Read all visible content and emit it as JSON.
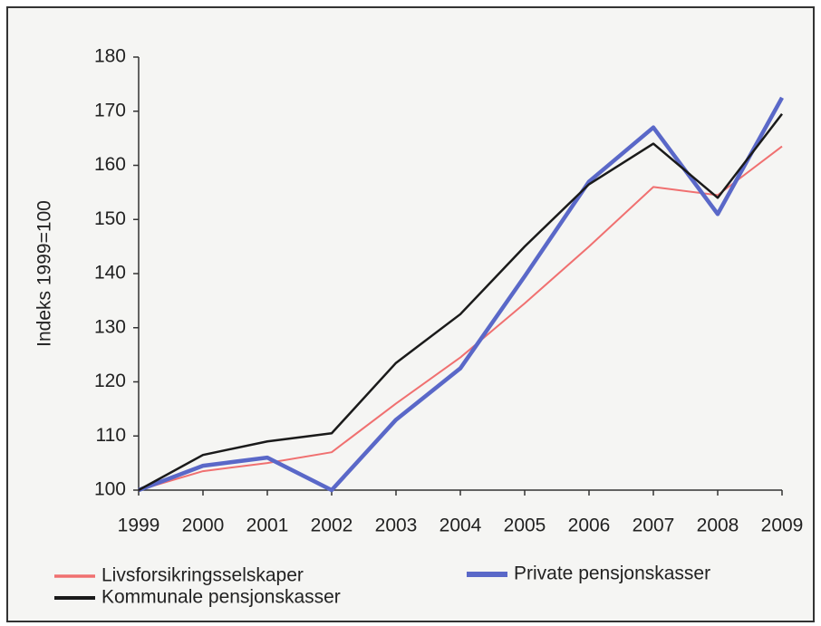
{
  "chart_data": {
    "type": "line",
    "ylabel": "Indeks 1999=100",
    "categories": [
      "1999",
      "2000",
      "2001",
      "2002",
      "2003",
      "2004",
      "2005",
      "2006",
      "2007",
      "2008",
      "2009"
    ],
    "series": [
      {
        "name": "Livsforsikringsselskaper",
        "color": "#f07070",
        "values": [
          100,
          103.5,
          105,
          107,
          116,
          124.5,
          134.5,
          145,
          156,
          154.5,
          163.5
        ]
      },
      {
        "name": "Private pensjonskasser",
        "color": "#5a68c8",
        "values": [
          100,
          104.5,
          106,
          100,
          113,
          122.5,
          139.5,
          157,
          167,
          151,
          172.5
        ]
      },
      {
        "name": "Kommunale pensjonskasser",
        "color": "#1a1a1a",
        "values": [
          100,
          106.5,
          109,
          110.5,
          123.5,
          132.5,
          145,
          156.5,
          164,
          154,
          169.5
        ]
      }
    ],
    "ylim": [
      100,
      180
    ],
    "yticks": [
      100,
      110,
      120,
      130,
      140,
      150,
      160,
      170,
      180
    ],
    "grid": false
  }
}
